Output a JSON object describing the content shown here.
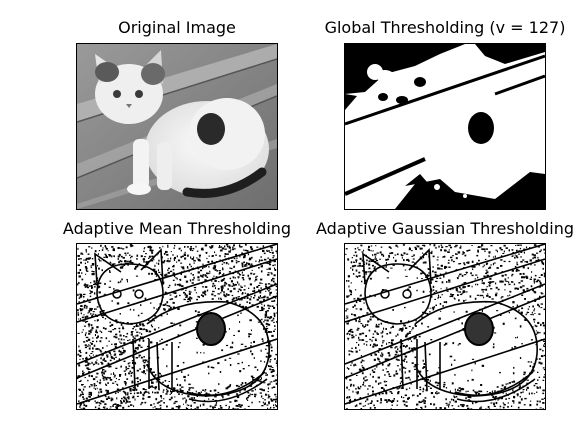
{
  "figure": {
    "panels": [
      {
        "title": "Original Image",
        "style": "grayscale"
      },
      {
        "title": "Global Thresholding (v = 127)",
        "style": "binary"
      },
      {
        "title": "Adaptive Mean Thresholding",
        "style": "edges"
      },
      {
        "title": "Adaptive Gaussian Thresholding",
        "style": "edges"
      }
    ]
  }
}
